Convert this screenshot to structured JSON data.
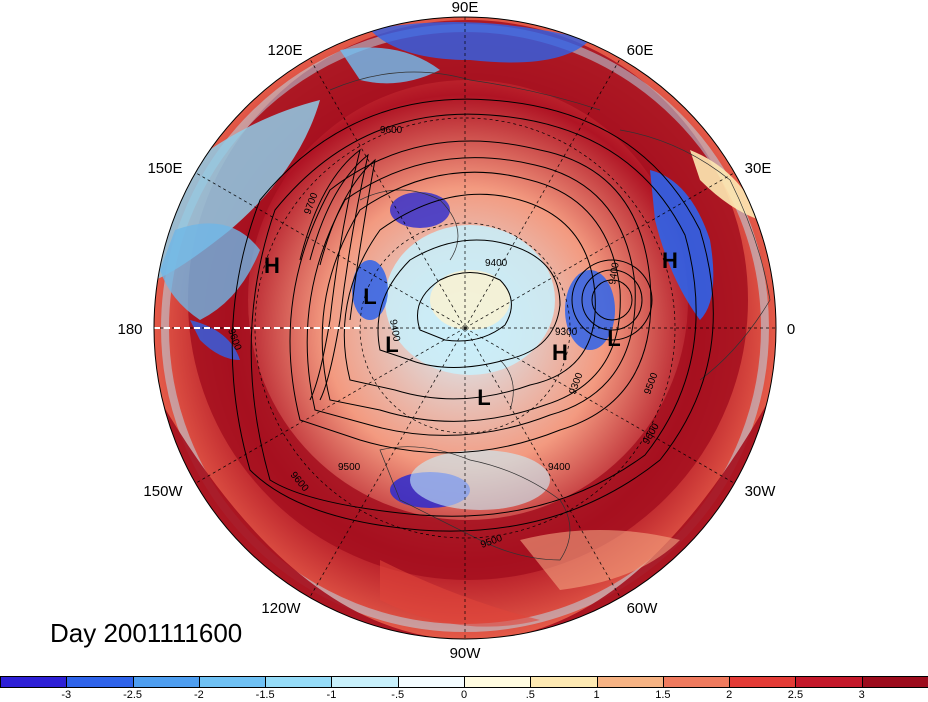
{
  "map": {
    "projection": "north-polar-stereographic",
    "longitude_labels": [
      {
        "id": "90E",
        "text": "90E"
      },
      {
        "id": "60E",
        "text": "60E"
      },
      {
        "id": "30E",
        "text": "30E"
      },
      {
        "id": "0",
        "text": "0"
      },
      {
        "id": "30W",
        "text": "30W"
      },
      {
        "id": "60W",
        "text": "60W"
      },
      {
        "id": "90W",
        "text": "90W"
      },
      {
        "id": "120W",
        "text": "120W"
      },
      {
        "id": "150W",
        "text": "150W"
      },
      {
        "id": "180",
        "text": "180"
      },
      {
        "id": "150E",
        "text": "150E"
      },
      {
        "id": "120E",
        "text": "120E"
      }
    ],
    "contour_labels": [
      "9700",
      "9600",
      "9400",
      "9300",
      "9500",
      "9400",
      "9600",
      "9500",
      "9600",
      "9500",
      "9300",
      "9400",
      "9600",
      "9400"
    ],
    "pressure_centers": [
      {
        "id": "H1",
        "text": "H"
      },
      {
        "id": "L1",
        "text": "L"
      },
      {
        "id": "L2",
        "text": "L"
      },
      {
        "id": "H2",
        "text": "H"
      },
      {
        "id": "L3",
        "text": "L"
      },
      {
        "id": "L4",
        "text": "L"
      },
      {
        "id": "H3",
        "text": "H"
      }
    ],
    "colors": {
      "deep_red": "#a50f1e",
      "red": "#e0443a",
      "orange": "#f4a582",
      "cream": "#fdf3d0",
      "light_blue": "#b8e6f5",
      "blue": "#4a9de0",
      "deep_blue": "#2b2bd0"
    }
  },
  "timestamp_label": "Day 2001111600",
  "colorbar": {
    "colors": [
      "#2d1fd6",
      "#2e63ea",
      "#4e9ef0",
      "#6fc1f4",
      "#96dcf8",
      "#c8f0fb",
      "#f4fcff",
      "#fffbe0",
      "#fde9b3",
      "#f6b384",
      "#ef7a5e",
      "#e33b36",
      "#c4182a",
      "#9c0b1c"
    ],
    "labels": [
      "-3",
      "-2.5",
      "-2",
      "-1.5",
      "-1",
      "-.5",
      "0",
      ".5",
      "1",
      "1.5",
      "2",
      "2.5",
      "3"
    ]
  }
}
